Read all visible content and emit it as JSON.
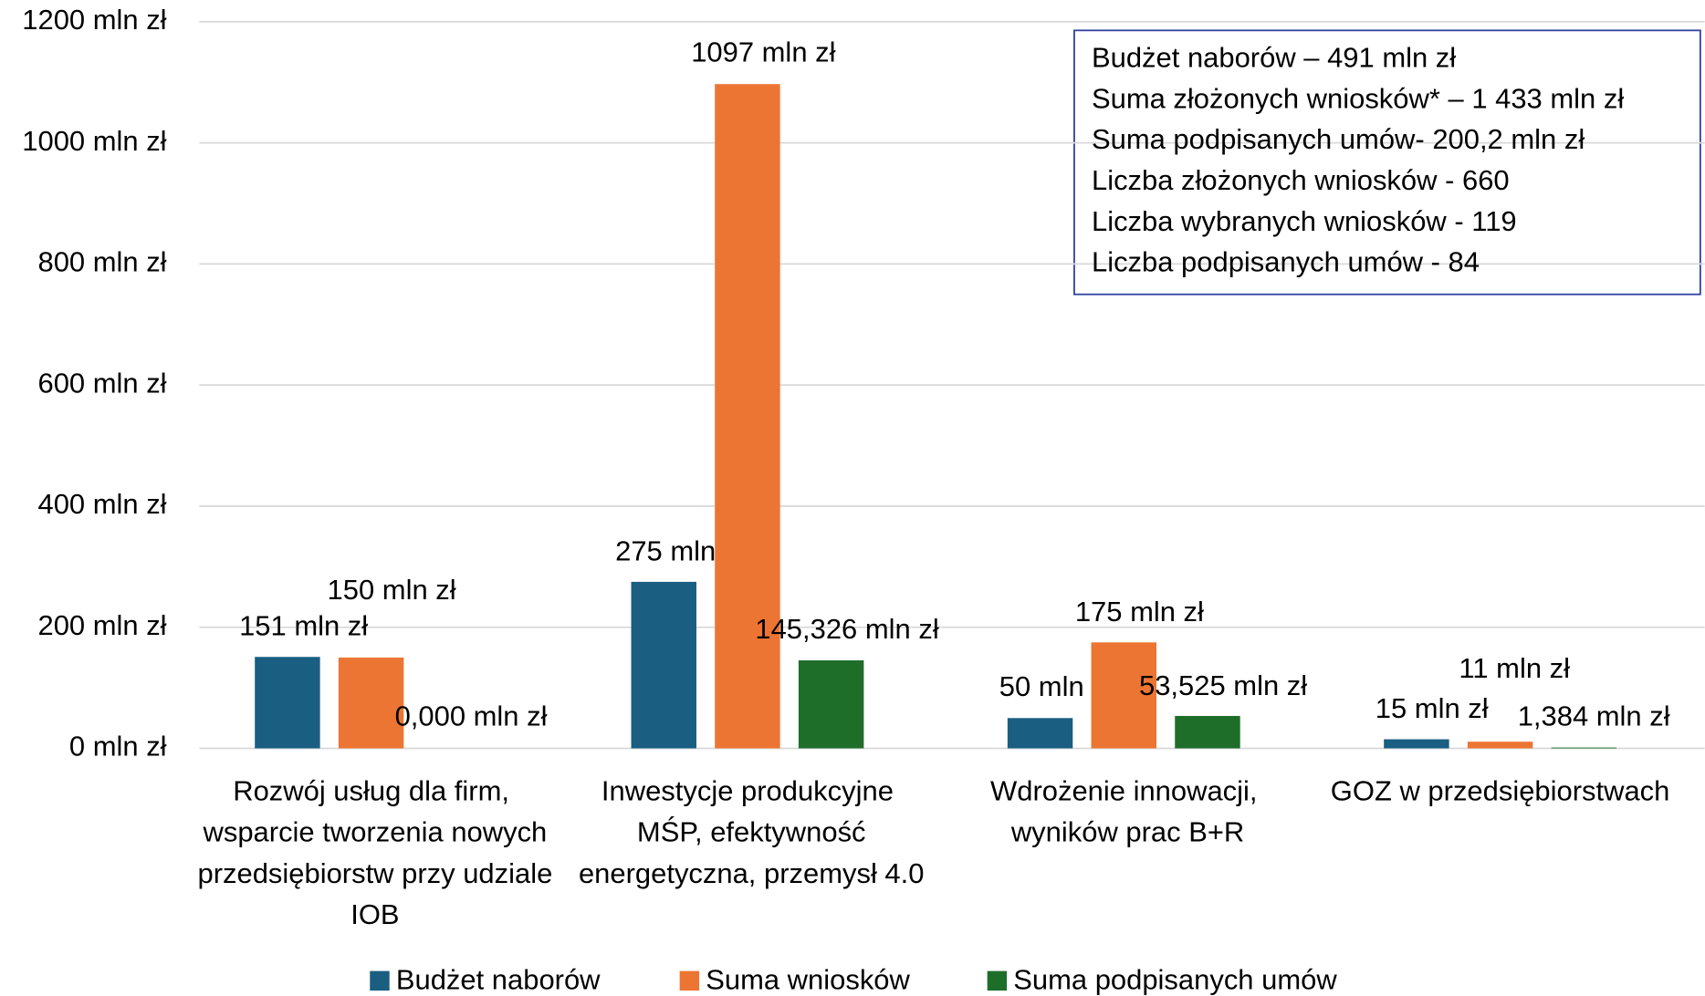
{
  "chart_data": {
    "type": "bar",
    "categories": [
      "Rozwój usług dla firm, wsparcie tworzenia nowych przedsiębiorstw przy udziale IOB",
      "Inwestycje produkcyjne MŚP, efektywność energetyczna, przemysł 4.0",
      "Wdrożenie innowacji, wyników prac B+R",
      "GOZ w przedsiębiorstwach"
    ],
    "series": [
      {
        "name": "Budżet naborów",
        "color": "#1a5e82",
        "values": [
          151,
          275,
          50,
          15
        ],
        "value_labels": [
          "151 mln zł",
          "275 mln zł",
          "50 mln zł",
          "15 mln zł"
        ]
      },
      {
        "name": "Suma wniosków",
        "color": "#ed7533",
        "values": [
          150,
          1097,
          175,
          11
        ],
        "value_labels": [
          "150 mln zł",
          "1097 mln zł",
          "175 mln zł",
          "11 mln zł"
        ]
      },
      {
        "name": "Suma podpisanych umów",
        "color": "#1e6e2a",
        "values": [
          0,
          145.326,
          53.525,
          1.384
        ],
        "value_labels": [
          "0,000 mln zł",
          "145,326 mln zł",
          "53,525 mln zł",
          "1,384 mln zł"
        ]
      }
    ],
    "ylim": [
      0,
      1200
    ],
    "yticks": [
      {
        "value": 0,
        "label": "0 mln zł"
      },
      {
        "value": 200,
        "label": "200 mln zł"
      },
      {
        "value": 400,
        "label": "400 mln zł"
      },
      {
        "value": 600,
        "label": "600 mln zł"
      },
      {
        "value": 800,
        "label": "800 mln zł"
      },
      {
        "value": 1000,
        "label": "1000 mln zł"
      },
      {
        "value": 1200,
        "label": "1200 mln zł"
      }
    ],
    "grid": true,
    "legend": "bottom",
    "annotation_box": [
      "Budżet naborów – 491 mln zł",
      "Suma złożonych wniosków* – 1 433 mln zł",
      "Suma podpisanych umów- 200,2 mln zł",
      "Liczba złożonych wniosków - 660",
      "Liczba wybranych wniosków - 119",
      "Liczba podpisanych umów - 84"
    ]
  }
}
